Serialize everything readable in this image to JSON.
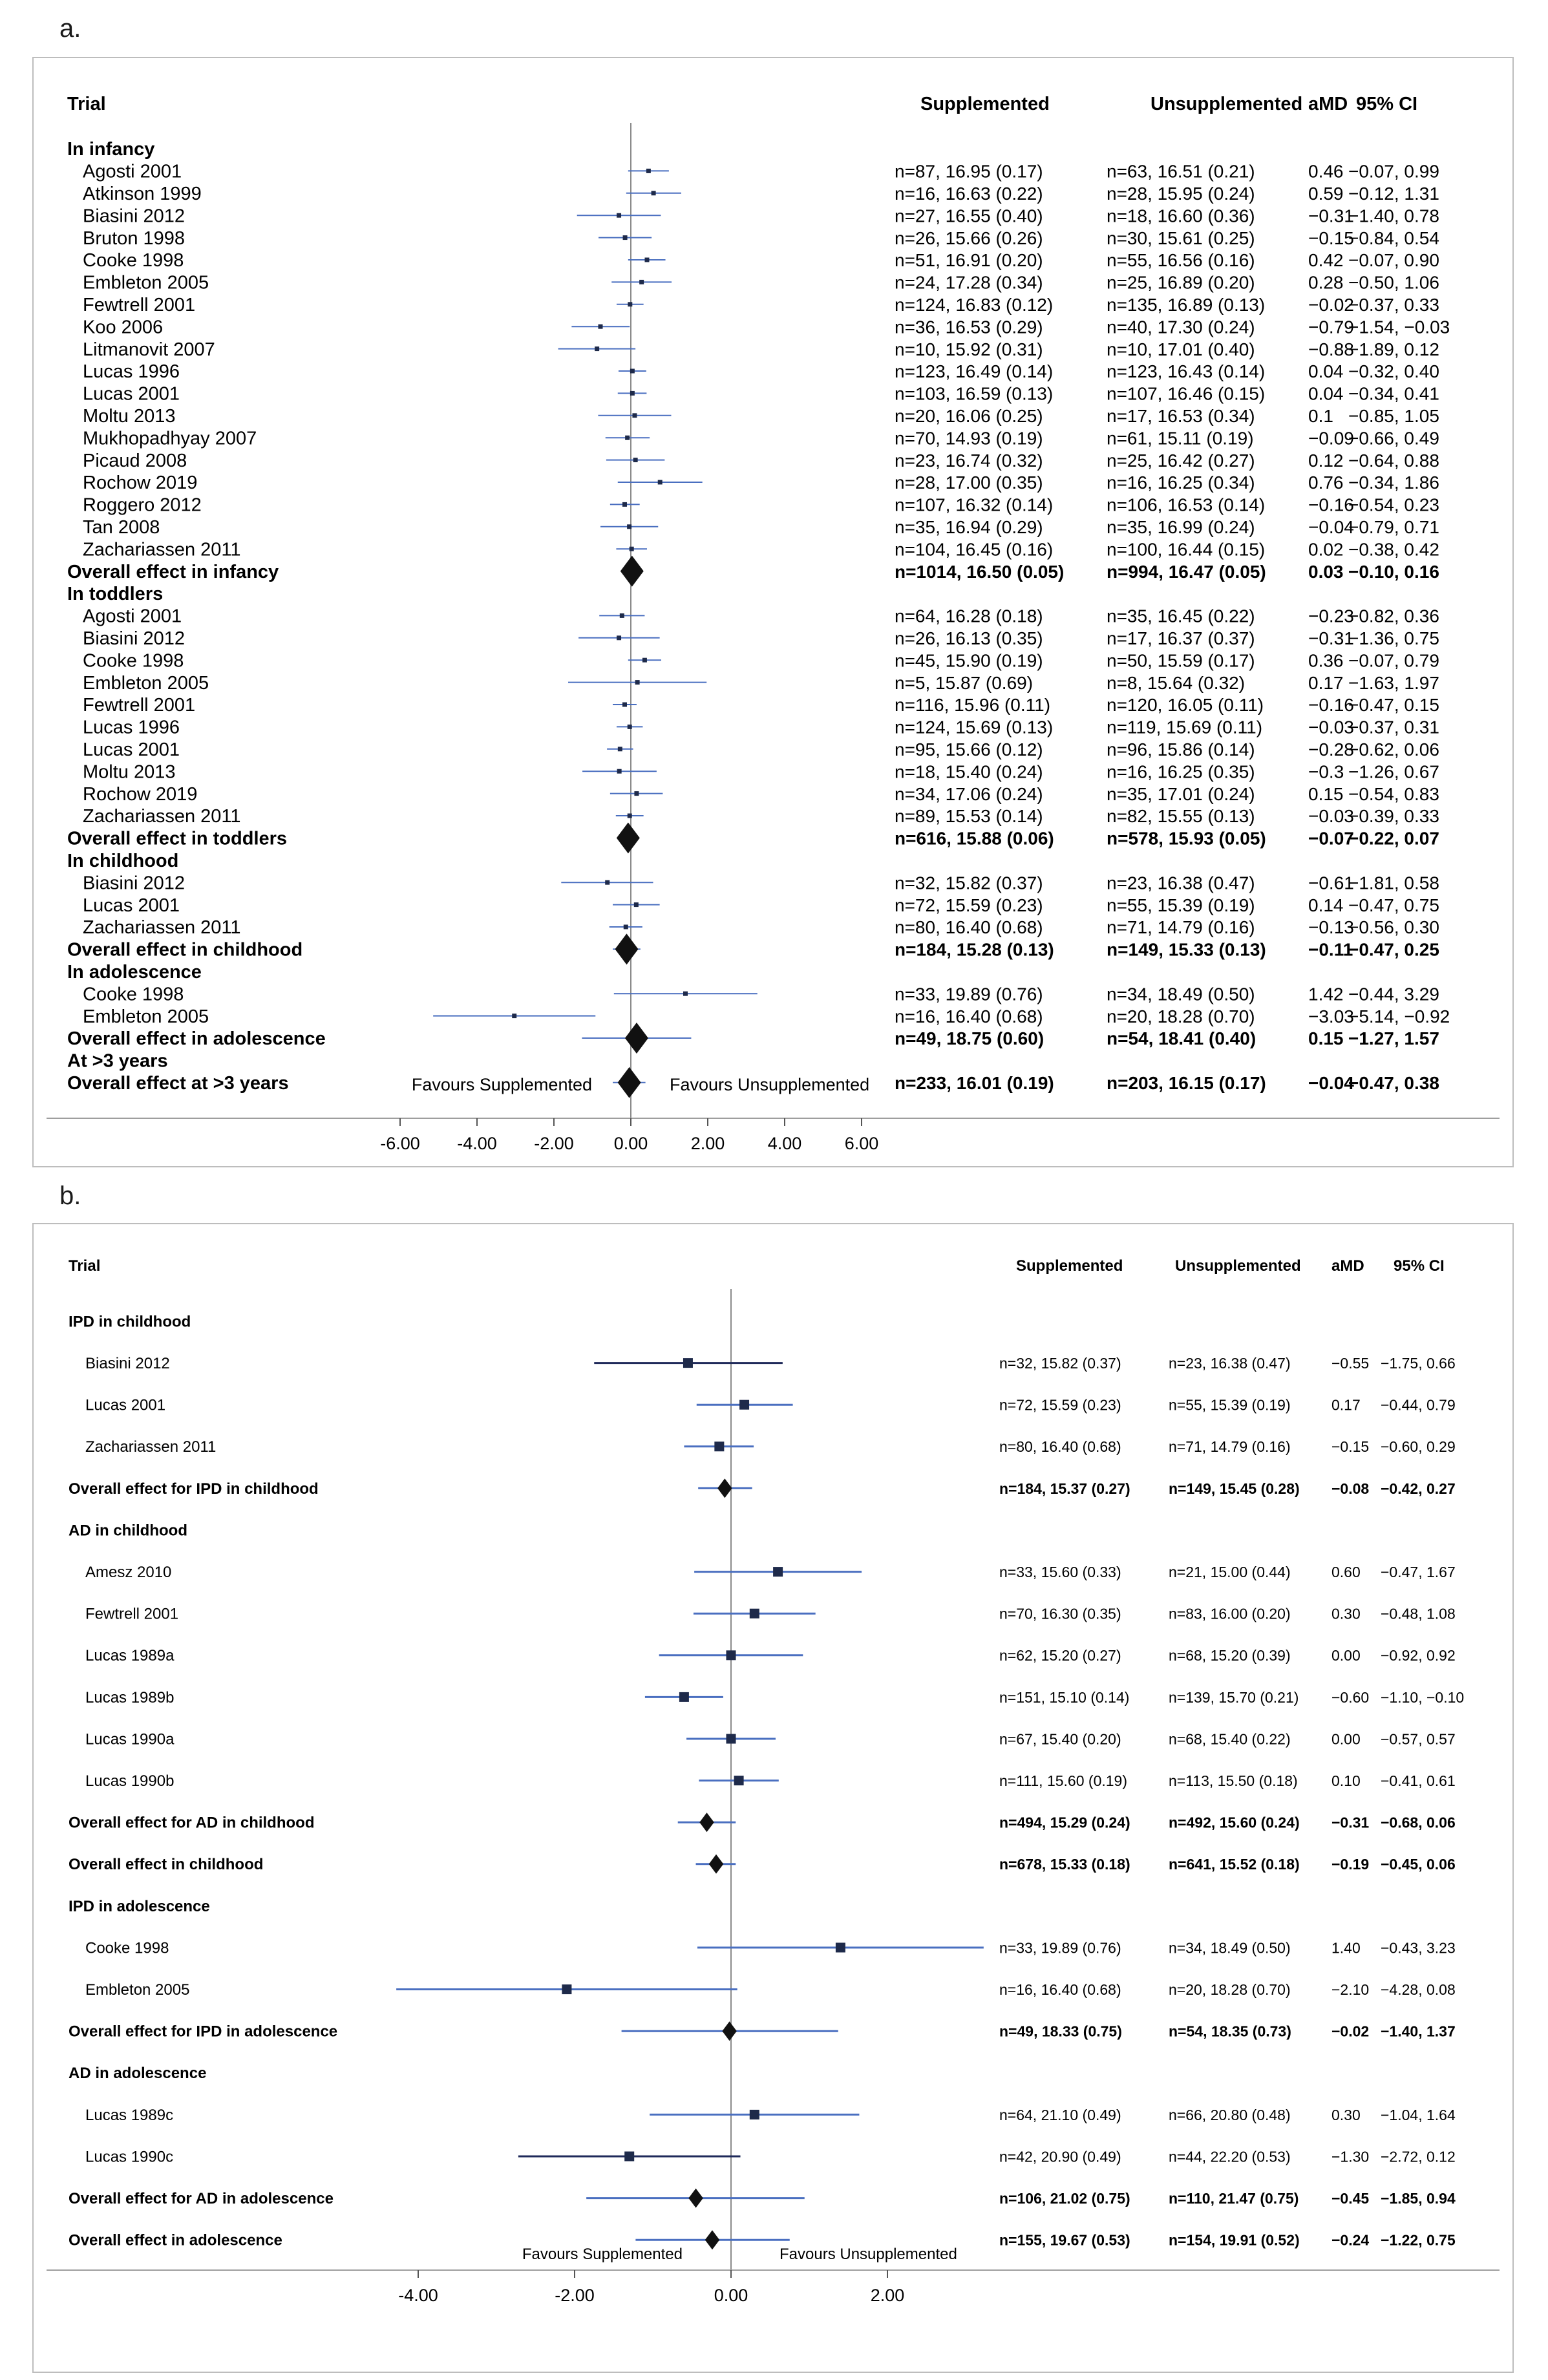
{
  "panels": [
    {
      "letter": "a.",
      "headers": {
        "trial": "Trial",
        "supp": "Supplemented",
        "unsupp": "Unsupplemented",
        "amd": "aMD",
        "ci": "95% CI"
      },
      "favours_left": "Favours Supplemented",
      "favours_right": "Favours Unsupplemented",
      "tick_labels": [
        "-6.00",
        "-4.00",
        "-2.00",
        "0.00",
        "2.00",
        "4.00",
        "6.00"
      ]
    },
    {
      "letter": "b.",
      "headers": {
        "trial": "Trial",
        "supp": "Supplemented",
        "unsupp": "Unsupplemented",
        "amd": "aMD",
        "ci": "95% CI"
      },
      "favours_left": "Favours Supplemented",
      "favours_right": "Favours Unsupplemented",
      "tick_labels": [
        "-4.00",
        "-2.00",
        "0.00",
        "2.00"
      ]
    }
  ],
  "chart_data": [
    {
      "type": "forest",
      "xlim": [
        -6,
        6
      ],
      "xticks": [
        -6,
        -4,
        -2,
        0,
        2,
        4,
        6
      ],
      "rows": [
        {
          "label": "In infancy",
          "kind": "group"
        },
        {
          "label": "Agosti 2001",
          "kind": "study",
          "supp": "n=87, 16.95 (0.17)",
          "unsupp": "n=63, 16.51 (0.21)",
          "amd": "0.46",
          "ci": "−0.07, 0.99",
          "est": 0.46,
          "lo": -0.07,
          "hi": 0.99
        },
        {
          "label": "Atkinson 1999",
          "kind": "study",
          "supp": "n=16, 16.63 (0.22)",
          "unsupp": "n=28, 15.95 (0.24)",
          "amd": "0.59",
          "ci": "−0.12, 1.31",
          "est": 0.59,
          "lo": -0.12,
          "hi": 1.31
        },
        {
          "label": "Biasini 2012",
          "kind": "study",
          "supp": "n=27, 16.55 (0.40)",
          "unsupp": "n=18, 16.60 (0.36)",
          "amd": "−0.31",
          "ci": "−1.40, 0.78",
          "est": -0.31,
          "lo": -1.4,
          "hi": 0.78
        },
        {
          "label": "Bruton 1998",
          "kind": "study",
          "supp": "n=26, 15.66 (0.26)",
          "unsupp": "n=30, 15.61 (0.25)",
          "amd": "−0.15",
          "ci": "−0.84, 0.54",
          "est": -0.15,
          "lo": -0.84,
          "hi": 0.54
        },
        {
          "label": "Cooke 1998",
          "kind": "study",
          "supp": "n=51, 16.91 (0.20)",
          "unsupp": "n=55, 16.56 (0.16)",
          "amd": "0.42",
          "ci": "−0.07, 0.90",
          "est": 0.42,
          "lo": -0.07,
          "hi": 0.9
        },
        {
          "label": "Embleton 2005",
          "kind": "study",
          "supp": "n=24, 17.28 (0.34)",
          "unsupp": "n=25, 16.89 (0.20)",
          "amd": "0.28",
          "ci": "−0.50, 1.06",
          "est": 0.28,
          "lo": -0.5,
          "hi": 1.06
        },
        {
          "label": "Fewtrell 2001",
          "kind": "study",
          "supp": "n=124, 16.83 (0.12)",
          "unsupp": "n=135, 16.89 (0.13)",
          "amd": "−0.02",
          "ci": "−0.37, 0.33",
          "est": -0.02,
          "lo": -0.37,
          "hi": 0.33
        },
        {
          "label": "Koo 2006",
          "kind": "study",
          "supp": "n=36, 16.53 (0.29)",
          "unsupp": "n=40, 17.30 (0.24)",
          "amd": "−0.79",
          "ci": "−1.54, −0.03",
          "est": -0.79,
          "lo": -1.54,
          "hi": -0.03
        },
        {
          "label": "Litmanovit 2007",
          "kind": "study",
          "supp": "n=10, 15.92 (0.31)",
          "unsupp": "n=10, 17.01 (0.40)",
          "amd": "−0.88",
          "ci": "−1.89, 0.12",
          "est": -0.88,
          "lo": -1.89,
          "hi": 0.12
        },
        {
          "label": "Lucas 1996",
          "kind": "study",
          "supp": "n=123, 16.49 (0.14)",
          "unsupp": "n=123, 16.43 (0.14)",
          "amd": "0.04",
          "ci": "−0.32, 0.40",
          "est": 0.04,
          "lo": -0.32,
          "hi": 0.4
        },
        {
          "label": "Lucas 2001",
          "kind": "study",
          "supp": "n=103, 16.59 (0.13)",
          "unsupp": "n=107, 16.46 (0.15)",
          "amd": "0.04",
          "ci": "−0.34, 0.41",
          "est": 0.04,
          "lo": -0.34,
          "hi": 0.41
        },
        {
          "label": "Moltu 2013",
          "kind": "study",
          "supp": "n=20, 16.06 (0.25)",
          "unsupp": "n=17, 16.53 (0.34)",
          "amd": "0.1",
          "ci": "−0.85, 1.05",
          "est": 0.1,
          "lo": -0.85,
          "hi": 1.05
        },
        {
          "label": "Mukhopadhyay 2007",
          "kind": "study",
          "supp": "n=70, 14.93 (0.19)",
          "unsupp": "n=61, 15.11 (0.19)",
          "amd": "−0.09",
          "ci": "−0.66, 0.49",
          "est": -0.09,
          "lo": -0.66,
          "hi": 0.49
        },
        {
          "label": "Picaud 2008",
          "kind": "study",
          "supp": "n=23, 16.74 (0.32)",
          "unsupp": "n=25, 16.42 (0.27)",
          "amd": "0.12",
          "ci": "−0.64, 0.88",
          "est": 0.12,
          "lo": -0.64,
          "hi": 0.88
        },
        {
          "label": "Rochow 2019",
          "kind": "study",
          "supp": "n=28, 17.00 (0.35)",
          "unsupp": "n=16, 16.25 (0.34)",
          "amd": "0.76",
          "ci": "−0.34, 1.86",
          "est": 0.76,
          "lo": -0.34,
          "hi": 1.86
        },
        {
          "label": "Roggero 2012",
          "kind": "study",
          "supp": "n=107, 16.32 (0.14)",
          "unsupp": "n=106, 16.53 (0.14)",
          "amd": "−0.16",
          "ci": "−0.54, 0.23",
          "est": -0.16,
          "lo": -0.54,
          "hi": 0.23
        },
        {
          "label": "Tan 2008",
          "kind": "study",
          "supp": "n=35, 16.94 (0.29)",
          "unsupp": "n=35, 16.99 (0.24)",
          "amd": "−0.04",
          "ci": "−0.79, 0.71",
          "est": -0.04,
          "lo": -0.79,
          "hi": 0.71
        },
        {
          "label": "Zachariassen 2011",
          "kind": "study",
          "supp": "n=104, 16.45 (0.16)",
          "unsupp": "n=100, 16.44 (0.15)",
          "amd": "0.02",
          "ci": "−0.38, 0.42",
          "est": 0.02,
          "lo": -0.38,
          "hi": 0.42
        },
        {
          "label": "Overall effect in infancy",
          "kind": "overall",
          "supp": "n=1014, 16.50 (0.05)",
          "unsupp": "n=994, 16.47 (0.05)",
          "amd": "0.03",
          "ci": "−0.10, 0.16",
          "est": 0.03,
          "lo": -0.1,
          "hi": 0.16
        },
        {
          "label": "In toddlers",
          "kind": "group"
        },
        {
          "label": "Agosti 2001",
          "kind": "study",
          "supp": "n=64, 16.28 (0.18)",
          "unsupp": "n=35, 16.45 (0.22)",
          "amd": "−0.23",
          "ci": "−0.82, 0.36",
          "est": -0.23,
          "lo": -0.82,
          "hi": 0.36
        },
        {
          "label": "Biasini 2012",
          "kind": "study",
          "supp": "n=26, 16.13 (0.35)",
          "unsupp": "n=17, 16.37 (0.37)",
          "amd": "−0.31",
          "ci": "−1.36, 0.75",
          "est": -0.31,
          "lo": -1.36,
          "hi": 0.75
        },
        {
          "label": "Cooke 1998",
          "kind": "study",
          "supp": "n=45, 15.90 (0.19)",
          "unsupp": "n=50, 15.59 (0.17)",
          "amd": "0.36",
          "ci": "−0.07, 0.79",
          "est": 0.36,
          "lo": -0.07,
          "hi": 0.79
        },
        {
          "label": "Embleton 2005",
          "kind": "study",
          "supp": "n=5, 15.87 (0.69)",
          "unsupp": "n=8, 15.64 (0.32)",
          "amd": "0.17",
          "ci": "−1.63, 1.97",
          "est": 0.17,
          "lo": -1.63,
          "hi": 1.97
        },
        {
          "label": "Fewtrell 2001",
          "kind": "study",
          "supp": "n=116, 15.96 (0.11)",
          "unsupp": "n=120, 16.05 (0.11)",
          "amd": "−0.16",
          "ci": "−0.47, 0.15",
          "est": -0.16,
          "lo": -0.47,
          "hi": 0.15
        },
        {
          "label": "Lucas 1996",
          "kind": "study",
          "supp": "n=124, 15.69 (0.13)",
          "unsupp": "n=119, 15.69 (0.11)",
          "amd": "−0.03",
          "ci": "−0.37, 0.31",
          "est": -0.03,
          "lo": -0.37,
          "hi": 0.31
        },
        {
          "label": "Lucas 2001",
          "kind": "study",
          "supp": "n=95, 15.66 (0.12)",
          "unsupp": "n=96, 15.86 (0.14)",
          "amd": "−0.28",
          "ci": "−0.62, 0.06",
          "est": -0.28,
          "lo": -0.62,
          "hi": 0.06
        },
        {
          "label": "Moltu 2013",
          "kind": "study",
          "supp": "n=18, 15.40 (0.24)",
          "unsupp": "n=16, 16.25 (0.35)",
          "amd": "−0.3",
          "ci": "−1.26, 0.67",
          "est": -0.3,
          "lo": -1.26,
          "hi": 0.67
        },
        {
          "label": "Rochow 2019",
          "kind": "study",
          "supp": "n=34, 17.06 (0.24)",
          "unsupp": "n=35, 17.01 (0.24)",
          "amd": "0.15",
          "ci": "−0.54, 0.83",
          "est": 0.15,
          "lo": -0.54,
          "hi": 0.83
        },
        {
          "label": "Zachariassen 2011",
          "kind": "study",
          "supp": "n=89, 15.53 (0.14)",
          "unsupp": "n=82, 15.55 (0.13)",
          "amd": "−0.03",
          "ci": "−0.39, 0.33",
          "est": -0.03,
          "lo": -0.39,
          "hi": 0.33
        },
        {
          "label": "Overall effect in toddlers",
          "kind": "overall",
          "supp": "n=616, 15.88 (0.06)",
          "unsupp": "n=578, 15.93 (0.05)",
          "amd": "−0.07",
          "ci": "−0.22, 0.07",
          "est": -0.07,
          "lo": -0.22,
          "hi": 0.07
        },
        {
          "label": "In childhood",
          "kind": "group"
        },
        {
          "label": "Biasini 2012",
          "kind": "study",
          "supp": "n=32, 15.82 (0.37)",
          "unsupp": "n=23, 16.38 (0.47)",
          "amd": "−0.61",
          "ci": "−1.81, 0.58",
          "est": -0.61,
          "lo": -1.81,
          "hi": 0.58
        },
        {
          "label": "Lucas 2001",
          "kind": "study",
          "supp": "n=72, 15.59 (0.23)",
          "unsupp": "n=55, 15.39 (0.19)",
          "amd": "0.14",
          "ci": "−0.47, 0.75",
          "est": 0.14,
          "lo": -0.47,
          "hi": 0.75
        },
        {
          "label": "Zachariassen 2011",
          "kind": "study",
          "supp": "n=80, 16.40 (0.68)",
          "unsupp": "n=71, 14.79 (0.16)",
          "amd": "−0.13",
          "ci": "−0.56, 0.30",
          "est": -0.13,
          "lo": -0.56,
          "hi": 0.3
        },
        {
          "label": "Overall effect in childhood",
          "kind": "overall",
          "supp": "n=184, 15.28 (0.13)",
          "unsupp": "n=149, 15.33 (0.13)",
          "amd": "−0.11",
          "ci": "−0.47, 0.25",
          "est": -0.11,
          "lo": -0.47,
          "hi": 0.25
        },
        {
          "label": "In adolescence",
          "kind": "group"
        },
        {
          "label": "Cooke 1998",
          "kind": "study",
          "supp": "n=33, 19.89 (0.76)",
          "unsupp": "n=34, 18.49 (0.50)",
          "amd": "1.42",
          "ci": "−0.44, 3.29",
          "est": 1.42,
          "lo": -0.44,
          "hi": 3.29
        },
        {
          "label": "Embleton 2005",
          "kind": "study",
          "supp": "n=16, 16.40 (0.68)",
          "unsupp": "n=20, 18.28 (0.70)",
          "amd": "−3.03",
          "ci": "−5.14, −0.92",
          "est": -3.03,
          "lo": -5.14,
          "hi": -0.92
        },
        {
          "label": "Overall effect in adolescence",
          "kind": "overall",
          "supp": "n=49, 18.75 (0.60)",
          "unsupp": "n=54, 18.41 (0.40)",
          "amd": "0.15",
          "ci": "−1.27, 1.57",
          "est": 0.15,
          "lo": -1.27,
          "hi": 1.57
        },
        {
          "label": "At >3 years",
          "kind": "group"
        },
        {
          "label": "Overall effect at >3 years",
          "kind": "overall",
          "supp": "n=233, 16.01 (0.19)",
          "unsupp": "n=203, 16.15 (0.17)",
          "amd": "−0.04",
          "ci": "−0.47, 0.38",
          "est": -0.04,
          "lo": -0.47,
          "hi": 0.38
        }
      ]
    },
    {
      "type": "forest",
      "xlim": [
        -4.2,
        3.2
      ],
      "xticks": [
        -4,
        -2,
        0,
        2
      ],
      "rows": [
        {
          "label": "IPD in childhood",
          "kind": "group"
        },
        {
          "label": "Biasini 2012",
          "kind": "study",
          "supp": "n=32, 15.82 (0.37)",
          "unsupp": "n=23, 16.38 (0.47)",
          "amd": "−0.55",
          "ci": "−1.75, 0.66",
          "est": -0.55,
          "lo": -1.75,
          "hi": 0.66,
          "dark": true
        },
        {
          "label": "Lucas 2001",
          "kind": "study",
          "supp": "n=72, 15.59 (0.23)",
          "unsupp": "n=55, 15.39 (0.19)",
          "amd": "0.17",
          "ci": "−0.44, 0.79",
          "est": 0.17,
          "lo": -0.44,
          "hi": 0.79
        },
        {
          "label": "Zachariassen 2011",
          "kind": "study",
          "supp": "n=80, 16.40 (0.68)",
          "unsupp": "n=71, 14.79 (0.16)",
          "amd": "−0.15",
          "ci": "−0.60, 0.29",
          "est": -0.15,
          "lo": -0.6,
          "hi": 0.29
        },
        {
          "label": "Overall effect for IPD in childhood",
          "kind": "overall",
          "supp": "n=184, 15.37 (0.27)",
          "unsupp": "n=149, 15.45 (0.28)",
          "amd": "−0.08",
          "ci": "−0.42, 0.27",
          "est": -0.08,
          "lo": -0.42,
          "hi": 0.27
        },
        {
          "label": "AD in childhood",
          "kind": "group"
        },
        {
          "label": "Amesz 2010",
          "kind": "study",
          "supp": "n=33, 15.60 (0.33)",
          "unsupp": "n=21, 15.00 (0.44)",
          "amd": "0.60",
          "ci": "−0.47, 1.67",
          "est": 0.6,
          "lo": -0.47,
          "hi": 1.67
        },
        {
          "label": "Fewtrell 2001",
          "kind": "study",
          "supp": "n=70, 16.30 (0.35)",
          "unsupp": "n=83, 16.00 (0.20)",
          "amd": "0.30",
          "ci": "−0.48, 1.08",
          "est": 0.3,
          "lo": -0.48,
          "hi": 1.08
        },
        {
          "label": "Lucas 1989a",
          "kind": "study",
          "supp": "n=62, 15.20 (0.27)",
          "unsupp": "n=68, 15.20 (0.39)",
          "amd": "0.00",
          "ci": "−0.92, 0.92",
          "est": 0.0,
          "lo": -0.92,
          "hi": 0.92
        },
        {
          "label": "Lucas 1989b",
          "kind": "study",
          "supp": "n=151, 15.10 (0.14)",
          "unsupp": "n=139, 15.70 (0.21)",
          "amd": "−0.60",
          "ci": "−1.10, −0.10",
          "est": -0.6,
          "lo": -1.1,
          "hi": -0.1
        },
        {
          "label": "Lucas 1990a",
          "kind": "study",
          "supp": "n=67, 15.40 (0.20)",
          "unsupp": "n=68, 15.40 (0.22)",
          "amd": "0.00",
          "ci": "−0.57, 0.57",
          "est": 0.0,
          "lo": -0.57,
          "hi": 0.57
        },
        {
          "label": "Lucas 1990b",
          "kind": "study",
          "supp": "n=111, 15.60 (0.19)",
          "unsupp": "n=113, 15.50 (0.18)",
          "amd": "0.10",
          "ci": "−0.41, 0.61",
          "est": 0.1,
          "lo": -0.41,
          "hi": 0.61
        },
        {
          "label": "Overall effect for AD in childhood",
          "kind": "overall",
          "supp": "n=494, 15.29 (0.24)",
          "unsupp": "n=492, 15.60 (0.24)",
          "amd": "−0.31",
          "ci": "−0.68, 0.06",
          "est": -0.31,
          "lo": -0.68,
          "hi": 0.06
        },
        {
          "label": "Overall effect in childhood",
          "kind": "overall",
          "supp": "n=678, 15.33 (0.18)",
          "unsupp": "n=641, 15.52 (0.18)",
          "amd": "−0.19",
          "ci": "−0.45, 0.06",
          "est": -0.19,
          "lo": -0.45,
          "hi": 0.06
        },
        {
          "label": "IPD in adolescence",
          "kind": "group"
        },
        {
          "label": "Cooke 1998",
          "kind": "study",
          "supp": "n=33, 19.89 (0.76)",
          "unsupp": "n=34, 18.49 (0.50)",
          "amd": "1.40",
          "ci": "−0.43, 3.23",
          "est": 1.4,
          "lo": -0.43,
          "hi": 3.23
        },
        {
          "label": "Embleton 2005",
          "kind": "study",
          "supp": "n=16, 16.40 (0.68)",
          "unsupp": "n=20, 18.28 (0.70)",
          "amd": "−2.10",
          "ci": "−4.28, 0.08",
          "est": -2.1,
          "lo": -4.28,
          "hi": 0.08
        },
        {
          "label": "Overall effect for IPD in adolescence",
          "kind": "overall",
          "supp": "n=49, 18.33 (0.75)",
          "unsupp": "n=54, 18.35 (0.73)",
          "amd": "−0.02",
          "ci": "−1.40, 1.37",
          "est": -0.02,
          "lo": -1.4,
          "hi": 1.37
        },
        {
          "label": "AD in adolescence",
          "kind": "group"
        },
        {
          "label": "Lucas 1989c",
          "kind": "study",
          "supp": "n=64, 21.10 (0.49)",
          "unsupp": "n=66, 20.80 (0.48)",
          "amd": "0.30",
          "ci": "−1.04, 1.64",
          "est": 0.3,
          "lo": -1.04,
          "hi": 1.64
        },
        {
          "label": "Lucas 1990c",
          "kind": "study",
          "supp": "n=42, 20.90 (0.49)",
          "unsupp": "n=44, 22.20 (0.53)",
          "amd": "−1.30",
          "ci": "−2.72, 0.12",
          "est": -1.3,
          "lo": -2.72,
          "hi": 0.12,
          "dark": true
        },
        {
          "label": "Overall effect for AD in adolescence",
          "kind": "overall",
          "supp": "n=106, 21.02 (0.75)",
          "unsupp": "n=110, 21.47 (0.75)",
          "amd": "−0.45",
          "ci": "−1.85, 0.94",
          "est": -0.45,
          "lo": -1.85,
          "hi": 0.94
        },
        {
          "label": "Overall effect in adolescence",
          "kind": "overall",
          "supp": "n=155, 19.67 (0.53)",
          "unsupp": "n=154, 19.91 (0.52)",
          "amd": "−0.24",
          "ci": "−1.22, 0.75",
          "est": -0.24,
          "lo": -1.22,
          "hi": 0.75
        }
      ]
    }
  ]
}
